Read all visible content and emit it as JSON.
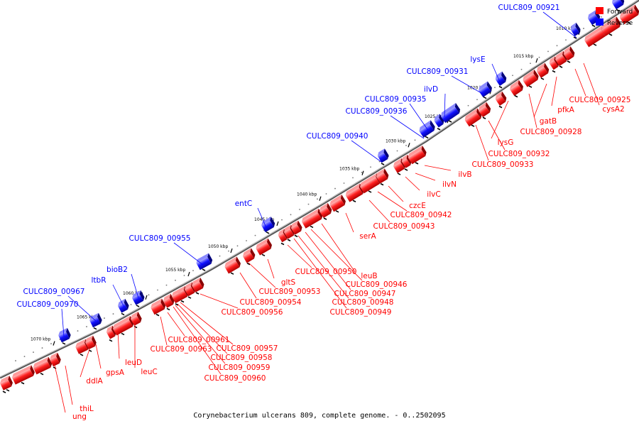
{
  "legend": {
    "items": [
      {
        "label": "Forward",
        "color": "#ff0000"
      },
      {
        "label": "Reverse",
        "color": "#0000ff"
      }
    ]
  },
  "caption": "Corynebacterium ulcerans 809, complete genome. - 0..2502095",
  "colors": {
    "forward": "#ff0000",
    "reverse": "#0000ff",
    "backbone": "#808080"
  },
  "ticks": [
    "1010 kbp",
    "1015 kbp",
    "1020 kbp",
    "1025 kbp",
    "1030 kbp",
    "1035 kbp",
    "1040 kbp",
    "1045 kbp",
    "1050 kbp",
    "1055 kbp",
    "1060 kbp",
    "1065 kbp",
    "1070 kbp"
  ],
  "reverse_labels": [
    "CULC809_00921",
    "lysE",
    "CULC809_00931",
    "ilvD",
    "CULC809_00935",
    "CULC809_00936",
    "CULC809_00940",
    "entC",
    "CULC809_00955",
    "bioB2",
    "ltbR",
    "CULC809_00967",
    "CULC809_00970"
  ],
  "forward_labels": [
    "CULC809_00925",
    "cysA2",
    "pfkA",
    "gatB",
    "CULC809_00928",
    "lysG",
    "CULC809_00932",
    "CULC809_00933",
    "ilvB",
    "ilvN",
    "ilvC",
    "czcE",
    "CULC809_00942",
    "CULC809_00943",
    "serA",
    "leuB",
    "CULC809_00946",
    "CULC809_00947",
    "CULC809_00948",
    "CULC809_00949",
    "CULC809_00950",
    "gltS",
    "CULC809_00953",
    "CULC809_00954",
    "CULC809_00956",
    "CULC809_00957",
    "CULC809_00958",
    "CULC809_00959",
    "CULC809_00960",
    "CULC809_00961",
    "CULC809_00963",
    "leuC",
    "leuD",
    "gpsA",
    "ddlA",
    "thiL",
    "ung"
  ]
}
